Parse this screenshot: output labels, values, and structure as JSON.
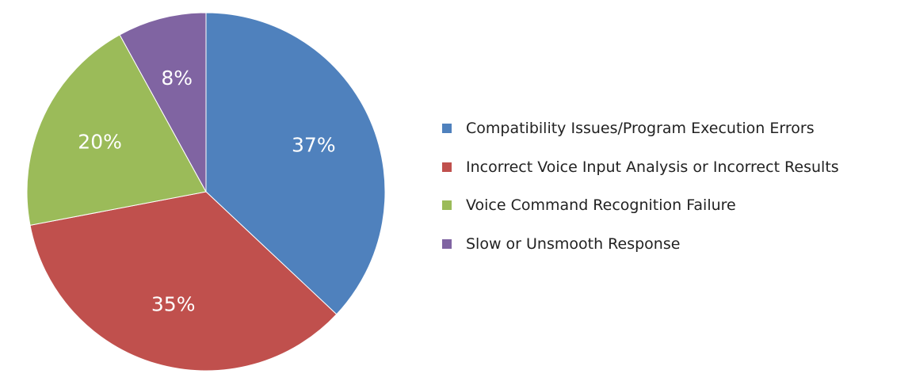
{
  "chart_data": {
    "type": "pie",
    "start_angle_deg": 0,
    "direction": "clockwise",
    "slices": [
      {
        "name": "Compatibility Issues/Program Execution Errors",
        "value": 37,
        "label": "37%",
        "color": "#4F81BD"
      },
      {
        "name": "Incorrect Voice Input Analysis or Incorrect Results",
        "value": 35,
        "label": "35%",
        "color": "#C0504D"
      },
      {
        "name": "Voice Command Recognition Failure",
        "value": 20,
        "label": "20%",
        "color": "#9BBB59"
      },
      {
        "name": "Slow or Unsmooth Response",
        "value": 8,
        "label": "8%",
        "color": "#8064A2"
      }
    ],
    "legend_position": "right"
  }
}
